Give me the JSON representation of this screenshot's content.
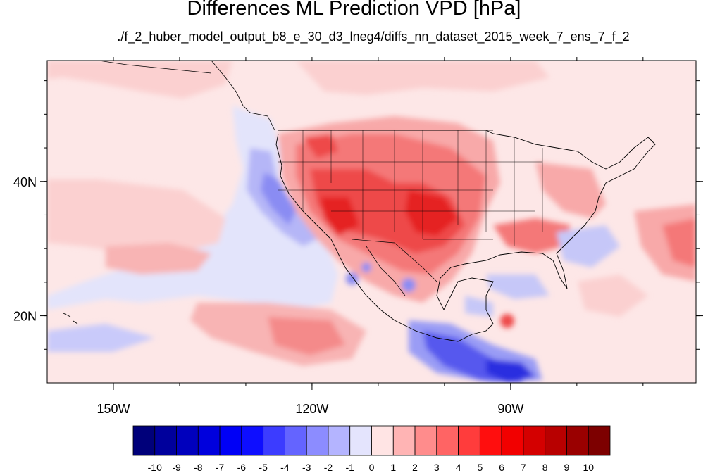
{
  "title": "Differences ML Prediction VPD [hPa]",
  "subtitle": "./f_2_huber_model_output_b8_e_30_d3_lneg4/diffs_nn_dataset_2015_week_7_ens_7_f_2",
  "map": {
    "lon_range": [
      -160,
      -62
    ],
    "lat_range": [
      10,
      58
    ],
    "x_ticks": [
      {
        "value": -150,
        "label": "150W"
      },
      {
        "value": -120,
        "label": "120W"
      },
      {
        "value": -90,
        "label": "90W"
      }
    ],
    "y_ticks": [
      {
        "value": 40,
        "label": "40N"
      },
      {
        "value": 20,
        "label": "20N"
      }
    ]
  },
  "colorbar": {
    "colors": [
      "#00007a",
      "#00009c",
      "#0000bd",
      "#0000dd",
      "#0000f6",
      "#0e0eff",
      "#3c3cff",
      "#6464ff",
      "#8c8cff",
      "#b4b4ff",
      "#e4e4fd",
      "#ffe4e4",
      "#ffb4b4",
      "#ff8c8c",
      "#ff6464",
      "#ff3c3c",
      "#ff0e0e",
      "#f20000",
      "#d40000",
      "#b80000",
      "#9a0000",
      "#7d0000"
    ],
    "labels": [
      "-10",
      "-9",
      "-8",
      "-7",
      "-6",
      "-5",
      "-4",
      "-3",
      "-2",
      "-1",
      "0",
      "1",
      "2",
      "3",
      "4",
      "5",
      "6",
      "7",
      "8",
      "9",
      "10"
    ]
  }
}
